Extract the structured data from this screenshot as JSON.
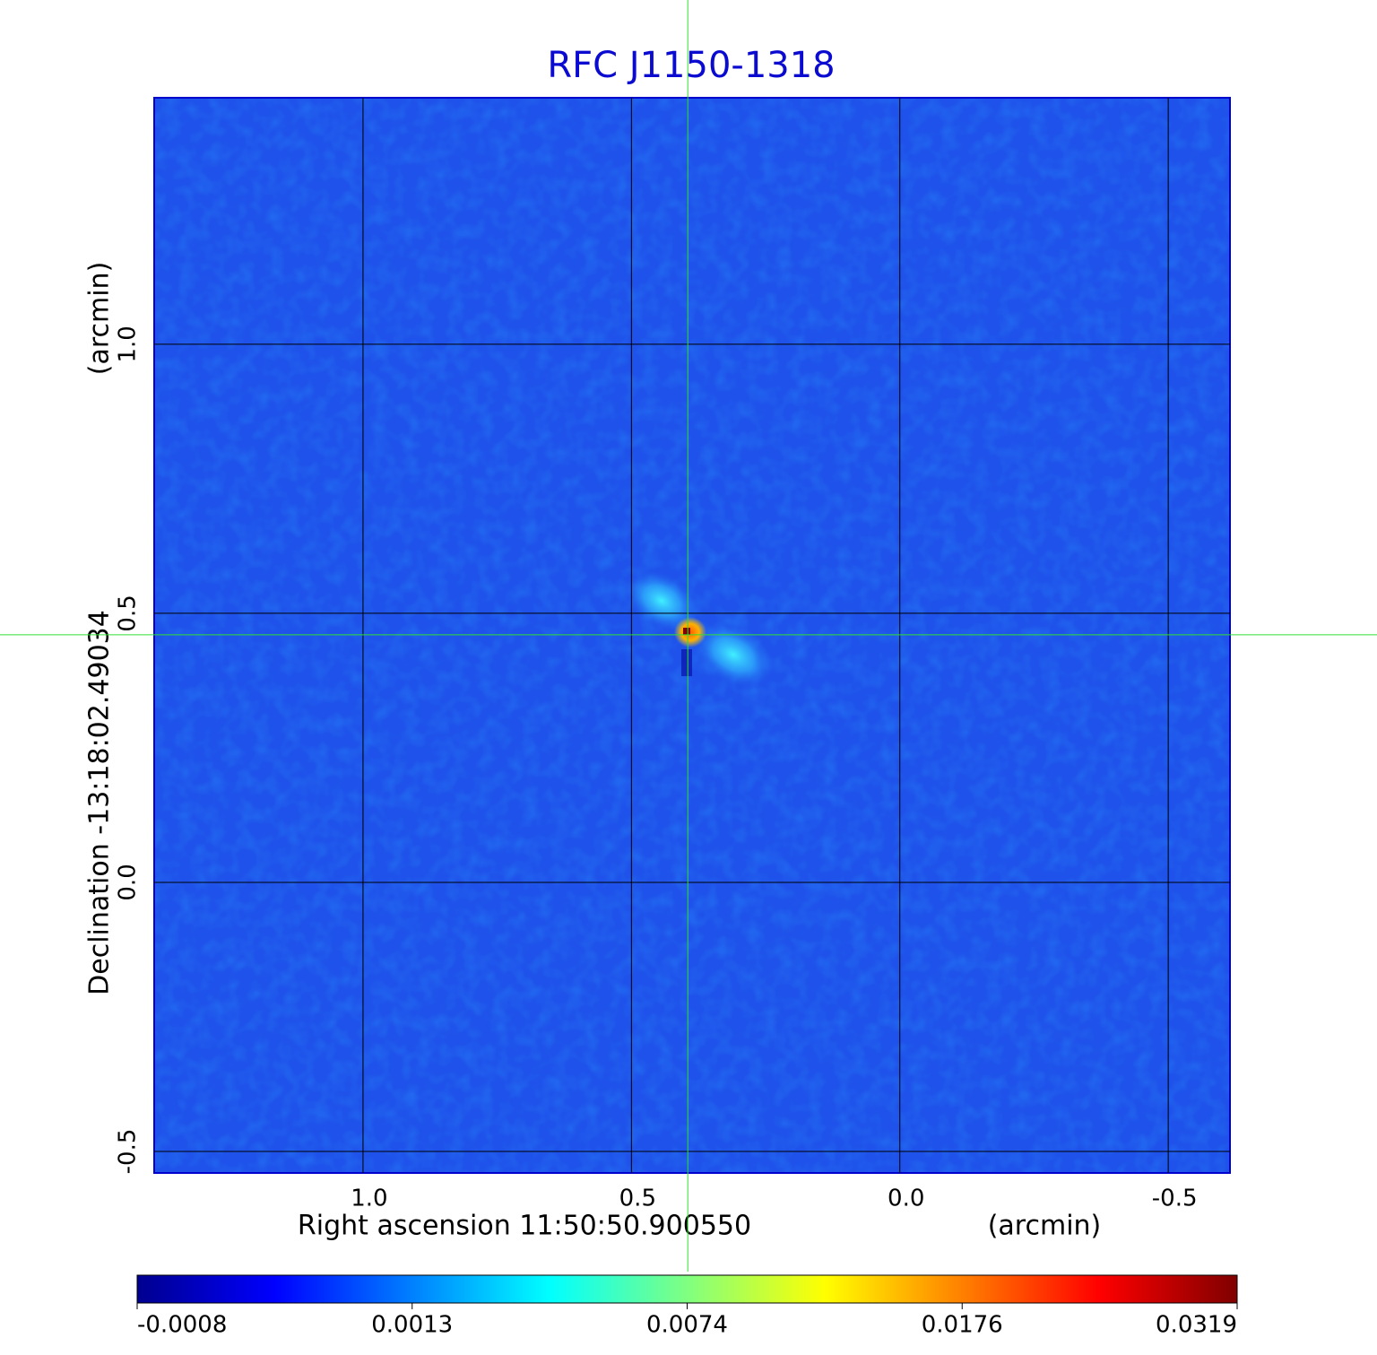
{
  "chart_data": {
    "type": "image",
    "title": "RFC J1150-1318",
    "xlabel": "Right ascension  11:50:50.900550",
    "xunit": "(arcmin)",
    "ylabel": "Declination  -13:18:02.49034",
    "yunit": "(arcmin)",
    "xlim": [
      1.389,
      -0.615
    ],
    "ylim": [
      -0.54,
      1.458
    ],
    "xticks": [
      {
        "value": 1.0,
        "label": "1.0"
      },
      0.5,
      {
        "value": 0.0,
        "label": "0.0"
      },
      -0.5
    ],
    "yticks": [
      {
        "value": -0.5,
        "label": "-0.5"
      },
      {
        "value": 0.0,
        "label": "0.0"
      },
      0.5,
      {
        "value": 1.0,
        "label": "1.0"
      }
    ],
    "grid": true,
    "crosshair": [
      0.395,
      0.46
    ],
    "colormap": "jet",
    "colorbar_ticks": [
      -0.0008,
      0.0013,
      0.0074,
      0.0176,
      0.0319
    ]
  }
}
